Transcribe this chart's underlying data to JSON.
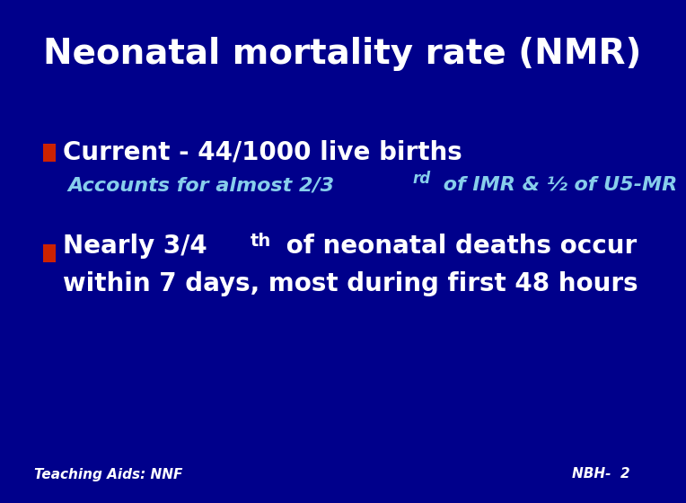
{
  "title": "Neonatal mortality rate (NMR)",
  "background_color": "#00008B",
  "bullet_color": "#CC2200",
  "bullet1_main": "Current - 44/1000 live births",
  "bullet1_sub_pre": "Accounts for almost 2/3",
  "bullet1_sub_sup": "rd",
  "bullet1_sub_post": " of IMR & ½ of U5-MR",
  "bullet2_pre": "Nearly 3/4",
  "bullet2_sup": "th",
  "bullet2_post": " of neonatal deaths occur",
  "bullet2_line2": "within 7 days, most during first 48 hours",
  "main_text_color": "#FFFFFF",
  "sub_text_color": "#87CEEB",
  "title_fontsize": 28,
  "main_fontsize": 20,
  "sub_fontsize": 16,
  "footer_left": "Teaching Aids: NNF",
  "footer_right": "NBH-  2",
  "footer_fontsize": 11,
  "footer_color": "#FFFFFF"
}
